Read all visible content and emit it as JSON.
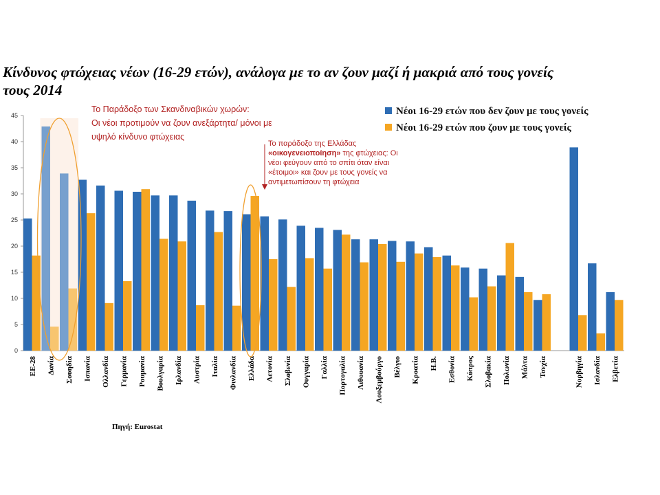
{
  "chart_data": {
    "type": "bar",
    "title_line1": "Κίνδυνος φτώχειας νέων (16-29 ετών), ανάλογα με το αν ζουν μαζί ή μακριά από τους γονείς",
    "title_line2": "τους 2014",
    "ylim": [
      0,
      45
    ],
    "yticks": [
      0,
      5,
      10,
      15,
      20,
      25,
      30,
      35,
      40,
      45
    ],
    "categories": [
      "ΕΕ-28",
      "Δανία",
      "Σουηδία",
      "Ισπανία",
      "Ολλανδία",
      "Γερμανία",
      "Ρουμανία",
      "Βουλγαρία",
      "Ιρλανδία",
      "Αυστρία",
      "Ιταλία",
      "Φινλανδία",
      "Ελλάδα",
      "Λετονία",
      "Σλοβενία",
      "Ουγγαρία",
      "Γαλλία",
      "Πορτογαλία",
      "Λιθουανία",
      "Λουξεμβούργο",
      "Βέλγιο",
      "Κροατία",
      "Η.Β.",
      "Εσθονία",
      "Κύπρος",
      "Σλοβακία",
      "Πολωνία",
      "Μάλτα",
      "Τσεχία",
      "Νορβηγία",
      "Ισλανδία",
      "Ελβετία"
    ],
    "series": [
      {
        "name": "Νέοι 16-29 ετών που δεν ζουν με τους γονείς",
        "color": "#2e6db4",
        "values": [
          25.3,
          42.9,
          33.9,
          32.7,
          31.6,
          30.6,
          30.4,
          29.7,
          29.7,
          28.7,
          26.8,
          26.7,
          26.1,
          25.7,
          25.1,
          23.9,
          23.5,
          23.1,
          21.3,
          21.3,
          21.0,
          20.9,
          19.8,
          18.2,
          15.9,
          15.7,
          14.4,
          14.1,
          9.7,
          38.9,
          16.7,
          11.2
        ]
      },
      {
        "name": "Νέοι 16-29 ετών που  ζουν με τους γονείς",
        "color": "#f5a623",
        "values": [
          18.2,
          4.6,
          11.9,
          26.3,
          9.1,
          13.3,
          30.9,
          21.4,
          20.9,
          8.7,
          22.7,
          8.6,
          29.6,
          17.5,
          12.2,
          17.7,
          15.7,
          22.2,
          16.9,
          20.4,
          17.0,
          18.6,
          17.9,
          16.3,
          10.2,
          12.3,
          20.6,
          11.2,
          10.8,
          6.8,
          3.3,
          9.7
        ]
      }
    ],
    "legend_position": "top-right",
    "grid": false
  },
  "annotations": {
    "nordic_line1": "Το Παράδοξο των Σκανδιναβικών χωρών:",
    "nordic_line2": "Οι νέοι προτιμούν να ζουν ανεξάρτητα/ μόνοι με",
    "nordic_line3": "υψηλό κίνδυνο φτώχειας",
    "greece_line1": "Το παράδοξο της Ελλάδας",
    "greece_bold": "«οικογενειοποίηση»",
    "greece_line2_rest": " της φτώχειας: Οι",
    "greece_line3": "νέοι φεύγουν από το σπίτι όταν είναι",
    "greece_line4": "«έτοιμοι» και ζουν με τους γονείς να",
    "greece_line5": "αντιμετωπίσουν τη φτώχεια"
  },
  "source": "Πηγή: Eurostat",
  "colors": {
    "highlight_nordic": "#f5c9a3",
    "ellipse": "#f0a030",
    "annotation": "#b22222"
  }
}
